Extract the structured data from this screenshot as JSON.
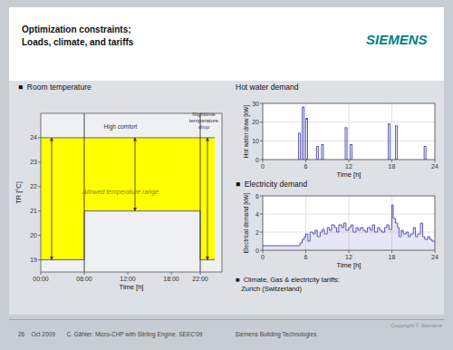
{
  "title": "Optimization constraints;",
  "subtitle": "Loads, climate, and tariffs",
  "annotations": [
    {
      "text": "SIEMENS",
      "color": "#00827f"
    },
    {
      "text": "■  Climate, Gas & electricity tariffs:\n   Zurich (Switzerland)"
    },
    {
      "text": "Copyright © Siemens"
    },
    {
      "text": "26    Oct 2009       C. Gähler: Micro-CHP with Stirling Engine. SEEC'09                    Siemens Building Technologies"
    }
  ],
  "chart_data": [
    {
      "type": "area",
      "title": "■  Room temperature",
      "x_label": "Time [h]",
      "y_label": "TR [°C]",
      "x": [
        0,
        6,
        6,
        22,
        22,
        24
      ],
      "values": [
        19,
        19,
        21,
        21,
        19,
        19
      ],
      "upper": 24,
      "color": "#ffff00",
      "xlim": [
        0,
        25
      ],
      "ylim": [
        18.5,
        25.0
      ],
      "xticks": [
        {
          "value": 0,
          "label": "00:00"
        },
        {
          "value": 6,
          "label": "06:00"
        },
        {
          "value": 12,
          "label": "12:00"
        },
        {
          "value": 18,
          "label": "18:00"
        },
        {
          "value": 22,
          "label": "22:00"
        }
      ],
      "yticks": [
        19,
        20,
        21,
        22,
        23,
        24
      ],
      "grid": false,
      "vlines": [
        6,
        22
      ],
      "arrows": [
        {
          "x": 1.5,
          "from": 19,
          "to": 24
        },
        {
          "x": 13,
          "from": 21,
          "to": 24
        },
        {
          "x": 23,
          "from": 19,
          "to": 24
        }
      ],
      "annotations": [
        {
          "text": "Allowed temperature range",
          "x": 11,
          "y": 21.8
        },
        {
          "text": "High comfort",
          "x": 11,
          "y": 24.35
        },
        {
          "text": "Nighttime\ntemperature\ndrop",
          "x": 22.5,
          "y": 24.35
        }
      ]
    },
    {
      "type": "bar",
      "title": "Hot water demand",
      "x_label": "Time [h]",
      "y_label": "Hot water draw [kW]",
      "x": [
        5.0,
        5.5,
        6.0,
        7.5,
        8.2,
        11.5,
        12.2,
        17.5,
        18.5,
        22.5
      ],
      "widths": [
        0.25,
        0.25,
        0.25,
        0.25,
        0.25,
        0.25,
        0.25,
        0.25,
        0.25,
        0.25
      ],
      "values": [
        14,
        28,
        22,
        7,
        8,
        17,
        8,
        19,
        18,
        7
      ],
      "color": "#5555bb",
      "xlim": [
        0,
        24
      ],
      "ylim": [
        0,
        30
      ],
      "xticks": [
        0,
        6,
        12,
        18,
        24
      ],
      "yticks": [
        0,
        10,
        20,
        30
      ],
      "grid": true
    },
    {
      "type": "area",
      "line_style": "step",
      "title": "■  Electricity demand",
      "x_label": "Time [h]",
      "y_label": "Electrical demand [kW]",
      "x": [
        0,
        0.5,
        1,
        1.5,
        2,
        2.5,
        3,
        3.5,
        4,
        4.5,
        5,
        5.2,
        5.5,
        5.8,
        6,
        6.3,
        6.6,
        7,
        7.3,
        7.6,
        8,
        8.3,
        8.6,
        9,
        9.3,
        9.6,
        10,
        10.3,
        10.6,
        11,
        11.3,
        11.6,
        12,
        12.3,
        12.6,
        13,
        13.3,
        13.6,
        14,
        14.3,
        14.6,
        15,
        15.3,
        15.6,
        16,
        16.3,
        16.6,
        17,
        17.3,
        17.6,
        18,
        18.2,
        18.5,
        18.8,
        19,
        19.3,
        19.6,
        20,
        20.3,
        20.6,
        21,
        21.3,
        21.6,
        22,
        22.3,
        22.6,
        23,
        23.3,
        23.6,
        24
      ],
      "values": [
        0.5,
        0.5,
        0.5,
        0.5,
        0.5,
        0.5,
        0.5,
        0.5,
        0.5,
        0.5,
        0.5,
        0.8,
        1.2,
        1.5,
        1.8,
        1.0,
        2.0,
        1.8,
        2.2,
        1.5,
        2.0,
        2.3,
        1.8,
        2.5,
        2.2,
        2.8,
        2.5,
        2.0,
        2.8,
        2.5,
        3.0,
        2.2,
        2.5,
        2.8,
        2.0,
        2.5,
        2.2,
        2.5,
        2.2,
        2.0,
        2.5,
        2.2,
        2.8,
        2.0,
        2.5,
        2.2,
        2.0,
        2.5,
        2.8,
        2.3,
        5.0,
        3.5,
        3.0,
        2.5,
        1.5,
        2.2,
        1.8,
        2.0,
        1.5,
        1.8,
        2.5,
        1.5,
        1.8,
        3.0,
        1.5,
        1.2,
        1.5,
        1.2,
        1.0,
        1.0
      ],
      "color": "#5555bb",
      "xlim": [
        0,
        24
      ],
      "ylim": [
        0,
        6
      ],
      "xticks": [
        0,
        6,
        12,
        18,
        24
      ],
      "yticks": [
        0,
        2,
        4,
        6
      ],
      "grid": true
    }
  ]
}
